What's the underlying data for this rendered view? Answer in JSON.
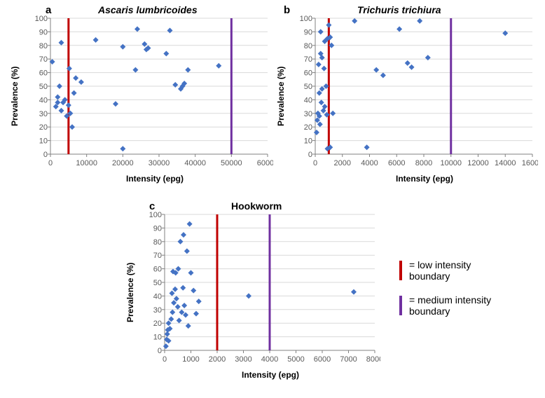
{
  "colors": {
    "marker": "#4472c4",
    "low_boundary": "#c00000",
    "medium_boundary": "#7030a0",
    "axis": "#808080",
    "grid": "#d9d9d9",
    "background": "#ffffff",
    "text": "#000000",
    "tick_text": "#595959"
  },
  "marker": {
    "shape": "diamond",
    "size": 8
  },
  "legend": {
    "low_label": "= low intensity boundary",
    "medium_label": "= medium intensity boundary"
  },
  "panels": {
    "a": {
      "label": "a",
      "title": "Ascaris lumbricoides",
      "title_italic": true,
      "xlabel": "Intensity (epg)",
      "ylabel": "Prevalence (%)",
      "xlim": [
        0,
        60000
      ],
      "xtick_step": 10000,
      "ylim": [
        0,
        100
      ],
      "ytick_step": 10,
      "low_boundary_x": 5000,
      "medium_boundary_x": 50000,
      "points": [
        [
          500,
          68
        ],
        [
          1500,
          35
        ],
        [
          2000,
          38
        ],
        [
          2000,
          42
        ],
        [
          2500,
          50
        ],
        [
          3000,
          32
        ],
        [
          3000,
          82
        ],
        [
          3500,
          38
        ],
        [
          4000,
          40
        ],
        [
          4500,
          28
        ],
        [
          5000,
          36
        ],
        [
          5200,
          63
        ],
        [
          5500,
          30
        ],
        [
          6000,
          20
        ],
        [
          6500,
          45
        ],
        [
          7000,
          56
        ],
        [
          8500,
          53
        ],
        [
          12500,
          84
        ],
        [
          18000,
          37
        ],
        [
          20000,
          4
        ],
        [
          20000,
          79
        ],
        [
          23500,
          62
        ],
        [
          24000,
          92
        ],
        [
          26000,
          81
        ],
        [
          26500,
          77
        ],
        [
          27000,
          78
        ],
        [
          32000,
          74
        ],
        [
          33000,
          91
        ],
        [
          34500,
          51
        ],
        [
          36000,
          48
        ],
        [
          36500,
          50
        ],
        [
          37000,
          52
        ],
        [
          38000,
          62
        ],
        [
          46500,
          65
        ]
      ]
    },
    "b": {
      "label": "b",
      "title": "Trichuris trichiura",
      "title_italic": true,
      "xlabel": "Intensity (epg)",
      "ylabel": "Prevalence (%)",
      "xlim": [
        0,
        16000
      ],
      "xtick_step": 2000,
      "ylim": [
        0,
        100
      ],
      "ytick_step": 10,
      "low_boundary_x": 1000,
      "medium_boundary_x": 10000,
      "points": [
        [
          100,
          16
        ],
        [
          150,
          25
        ],
        [
          200,
          30
        ],
        [
          250,
          66
        ],
        [
          300,
          28
        ],
        [
          300,
          45
        ],
        [
          350,
          22
        ],
        [
          400,
          74
        ],
        [
          400,
          90
        ],
        [
          450,
          38
        ],
        [
          500,
          48
        ],
        [
          500,
          71
        ],
        [
          600,
          32
        ],
        [
          650,
          63
        ],
        [
          700,
          35
        ],
        [
          700,
          83
        ],
        [
          800,
          50
        ],
        [
          850,
          29
        ],
        [
          900,
          4
        ],
        [
          900,
          85
        ],
        [
          1000,
          95
        ],
        [
          1100,
          5
        ],
        [
          1100,
          86
        ],
        [
          1200,
          80
        ],
        [
          1300,
          30
        ],
        [
          2900,
          98
        ],
        [
          3800,
          5
        ],
        [
          4500,
          62
        ],
        [
          5000,
          58
        ],
        [
          6200,
          92
        ],
        [
          6800,
          67
        ],
        [
          7100,
          64
        ],
        [
          7700,
          98
        ],
        [
          8300,
          71
        ],
        [
          14000,
          89
        ]
      ]
    },
    "c": {
      "label": "c",
      "title": "Hookworm",
      "title_italic": false,
      "xlabel": "Intensity (epg)",
      "ylabel": "Prevalence (%)",
      "xlim": [
        0,
        8000
      ],
      "xtick_step": 1000,
      "ylim": [
        0,
        100
      ],
      "ytick_step": 10,
      "low_boundary_x": 2000,
      "medium_boundary_x": 4000,
      "points": [
        [
          50,
          3
        ],
        [
          80,
          8
        ],
        [
          100,
          12
        ],
        [
          120,
          15
        ],
        [
          150,
          7
        ],
        [
          150,
          20
        ],
        [
          200,
          16
        ],
        [
          250,
          23
        ],
        [
          280,
          42
        ],
        [
          300,
          28
        ],
        [
          320,
          58
        ],
        [
          350,
          35
        ],
        [
          400,
          45
        ],
        [
          420,
          57
        ],
        [
          450,
          38
        ],
        [
          500,
          32
        ],
        [
          520,
          60
        ],
        [
          550,
          22
        ],
        [
          600,
          80
        ],
        [
          650,
          28
        ],
        [
          700,
          46
        ],
        [
          720,
          85
        ],
        [
          750,
          33
        ],
        [
          800,
          26
        ],
        [
          850,
          73
        ],
        [
          900,
          18
        ],
        [
          950,
          93
        ],
        [
          1000,
          57
        ],
        [
          1100,
          44
        ],
        [
          1200,
          27
        ],
        [
          1300,
          36
        ],
        [
          3200,
          40
        ],
        [
          7200,
          43
        ]
      ]
    }
  }
}
